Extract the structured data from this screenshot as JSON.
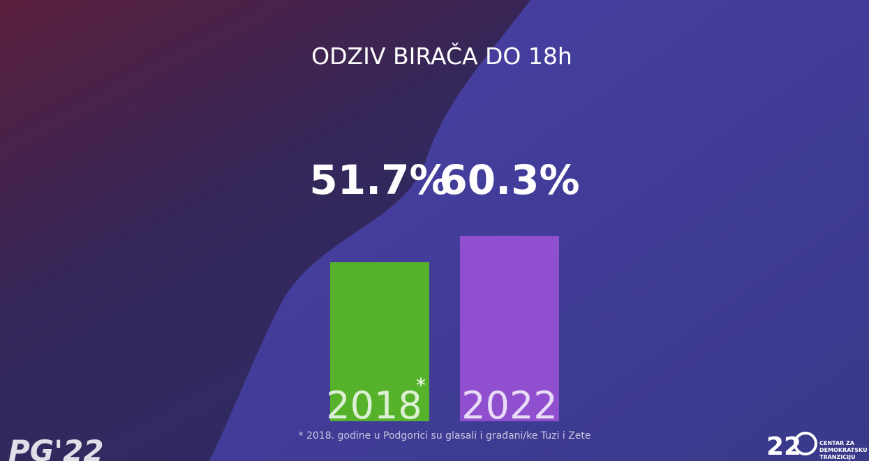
{
  "chart_data": {
    "type": "bar",
    "title": "ODZIV BIRAČA DO 18h",
    "categories": [
      "2018",
      "2022"
    ],
    "values": [
      51.7,
      60.3
    ],
    "value_labels": [
      "51.7%",
      "60.3%"
    ],
    "colors": [
      "#56b22b",
      "#904fcf"
    ],
    "category_marker": "*",
    "footnote": "* 2018. godine u Podgorici su glasali i građani/ke Tuzi i Zete"
  },
  "branding": {
    "left_logo": "PG'22",
    "right_logo_number": "22",
    "right_logo_text": [
      "CENTAR ZA",
      "DEMOKRATSKU",
      "TRANZICIJU"
    ]
  }
}
